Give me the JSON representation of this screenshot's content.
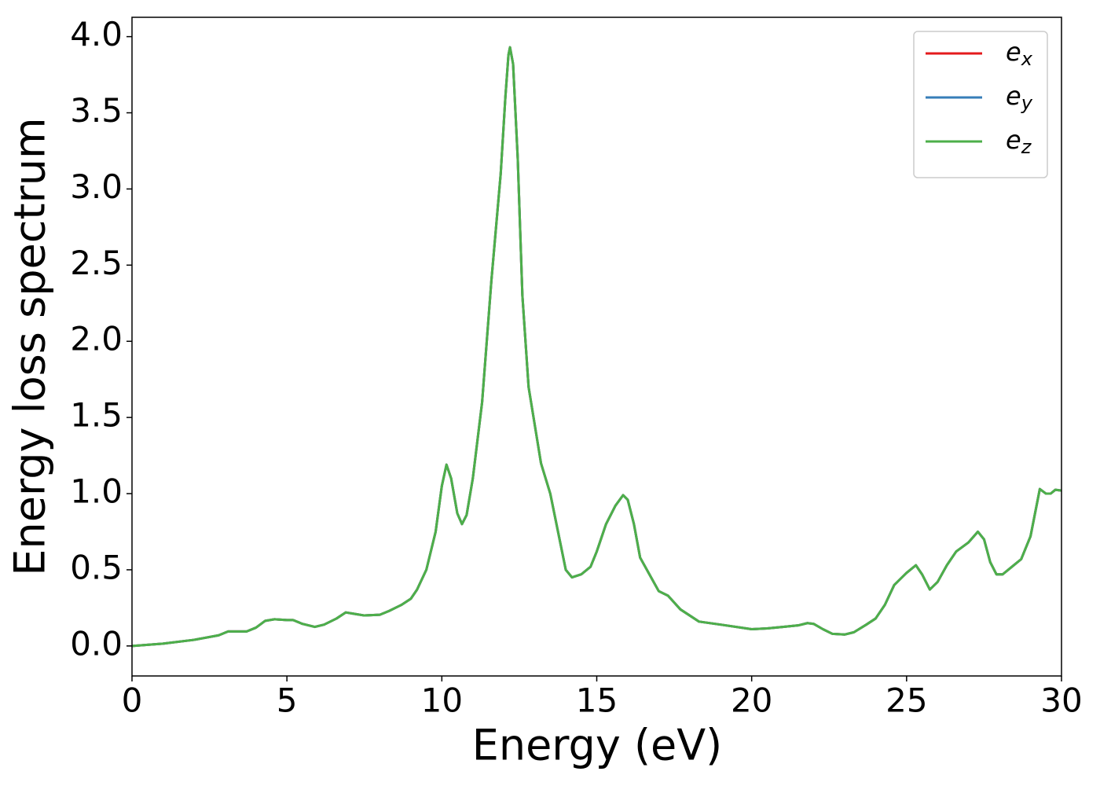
{
  "chart_data": {
    "type": "line",
    "xlabel": "Energy (eV)",
    "ylabel": "Energy loss spectrum",
    "xlim": [
      0,
      30
    ],
    "ylim": [
      -0.197,
      4.127
    ],
    "xticks": [
      0,
      5,
      10,
      15,
      20,
      25,
      30
    ],
    "yticks": [
      {
        "value": 0,
        "label": "0.0"
      },
      {
        "value": 0.5,
        "label": "0.5"
      },
      {
        "value": 1,
        "label": "1.0"
      },
      {
        "value": 1.5,
        "label": "1.5"
      },
      {
        "value": 2,
        "label": "2.0"
      },
      {
        "value": 2.5,
        "label": "2.5"
      },
      {
        "value": 3,
        "label": "3.0"
      },
      {
        "value": 3.5,
        "label": "3.5"
      },
      {
        "value": 4,
        "label": "4.0"
      }
    ],
    "legend": "upper right",
    "grid": false,
    "x": [
      0,
      1,
      2,
      2.8,
      3.1,
      3.7,
      4.0,
      4.3,
      4.6,
      5.0,
      5.2,
      5.5,
      5.9,
      6.2,
      6.6,
      6.9,
      7.2,
      7.5,
      8.0,
      8.3,
      8.7,
      9.0,
      9.2,
      9.5,
      9.8,
      10.0,
      10.15,
      10.3,
      10.5,
      10.65,
      10.8,
      11.0,
      11.3,
      11.6,
      11.9,
      12.05,
      12.15,
      12.2,
      12.3,
      12.45,
      12.6,
      12.8,
      13.0,
      13.2,
      13.5,
      13.8,
      14.0,
      14.2,
      14.5,
      14.8,
      15.0,
      15.3,
      15.6,
      15.85,
      16.0,
      16.2,
      16.4,
      16.7,
      17.0,
      17.3,
      17.7,
      18.0,
      18.3,
      19.0,
      20.0,
      20.5,
      21.0,
      21.5,
      21.8,
      22.0,
      22.3,
      22.6,
      23.0,
      23.3,
      23.7,
      24.0,
      24.3,
      24.6,
      25.0,
      25.3,
      25.5,
      25.75,
      26.0,
      26.3,
      26.6,
      27.0,
      27.3,
      27.5,
      27.7,
      27.9,
      28.1,
      28.4,
      28.7,
      29.0,
      29.3,
      29.5,
      29.65,
      29.8,
      30.0
    ],
    "series": [
      {
        "name": "ex",
        "color": "#e41a1c",
        "values": [
          0,
          0.015,
          0.04,
          0.07,
          0.095,
          0.095,
          0.12,
          0.165,
          0.175,
          0.17,
          0.17,
          0.145,
          0.125,
          0.14,
          0.18,
          0.22,
          0.21,
          0.2,
          0.205,
          0.23,
          0.27,
          0.31,
          0.37,
          0.5,
          0.75,
          1.05,
          1.19,
          1.1,
          0.87,
          0.8,
          0.86,
          1.1,
          1.6,
          2.4,
          3.1,
          3.6,
          3.88,
          3.93,
          3.82,
          3.2,
          2.3,
          1.7,
          1.45,
          1.2,
          1.0,
          0.7,
          0.5,
          0.45,
          0.47,
          0.52,
          0.62,
          0.8,
          0.92,
          0.99,
          0.96,
          0.8,
          0.58,
          0.47,
          0.36,
          0.33,
          0.24,
          0.2,
          0.16,
          0.14,
          0.11,
          0.115,
          0.125,
          0.135,
          0.15,
          0.145,
          0.11,
          0.08,
          0.075,
          0.09,
          0.14,
          0.18,
          0.27,
          0.4,
          0.48,
          0.53,
          0.47,
          0.37,
          0.42,
          0.53,
          0.62,
          0.68,
          0.75,
          0.7,
          0.55,
          0.47,
          0.47,
          0.52,
          0.57,
          0.72,
          1.03,
          1.0,
          1.0,
          1.025,
          1.02
        ]
      },
      {
        "name": "ey",
        "color": "#377eb8",
        "values": [
          0,
          0.015,
          0.04,
          0.07,
          0.095,
          0.095,
          0.12,
          0.165,
          0.175,
          0.17,
          0.17,
          0.145,
          0.125,
          0.14,
          0.18,
          0.22,
          0.21,
          0.2,
          0.205,
          0.23,
          0.27,
          0.31,
          0.37,
          0.5,
          0.75,
          1.05,
          1.19,
          1.1,
          0.87,
          0.8,
          0.86,
          1.1,
          1.6,
          2.4,
          3.1,
          3.6,
          3.88,
          3.93,
          3.82,
          3.2,
          2.3,
          1.7,
          1.45,
          1.2,
          1.0,
          0.7,
          0.5,
          0.45,
          0.47,
          0.52,
          0.62,
          0.8,
          0.92,
          0.99,
          0.96,
          0.8,
          0.58,
          0.47,
          0.36,
          0.33,
          0.24,
          0.2,
          0.16,
          0.14,
          0.11,
          0.115,
          0.125,
          0.135,
          0.15,
          0.145,
          0.11,
          0.08,
          0.075,
          0.09,
          0.14,
          0.18,
          0.27,
          0.4,
          0.48,
          0.53,
          0.47,
          0.37,
          0.42,
          0.53,
          0.62,
          0.68,
          0.75,
          0.7,
          0.55,
          0.47,
          0.47,
          0.52,
          0.57,
          0.72,
          1.03,
          1.0,
          1.0,
          1.025,
          1.02
        ]
      },
      {
        "name": "ez",
        "color": "#4daf4a",
        "values": [
          0,
          0.015,
          0.04,
          0.07,
          0.095,
          0.095,
          0.12,
          0.165,
          0.175,
          0.17,
          0.17,
          0.145,
          0.125,
          0.14,
          0.18,
          0.22,
          0.21,
          0.2,
          0.205,
          0.23,
          0.27,
          0.31,
          0.37,
          0.5,
          0.75,
          1.05,
          1.19,
          1.1,
          0.87,
          0.8,
          0.86,
          1.1,
          1.6,
          2.4,
          3.1,
          3.6,
          3.88,
          3.93,
          3.82,
          3.2,
          2.3,
          1.7,
          1.45,
          1.2,
          1.0,
          0.7,
          0.5,
          0.45,
          0.47,
          0.52,
          0.62,
          0.8,
          0.92,
          0.99,
          0.96,
          0.8,
          0.58,
          0.47,
          0.36,
          0.33,
          0.24,
          0.2,
          0.16,
          0.14,
          0.11,
          0.115,
          0.125,
          0.135,
          0.15,
          0.145,
          0.11,
          0.08,
          0.075,
          0.09,
          0.14,
          0.18,
          0.27,
          0.4,
          0.48,
          0.53,
          0.47,
          0.37,
          0.42,
          0.53,
          0.62,
          0.68,
          0.75,
          0.7,
          0.55,
          0.47,
          0.47,
          0.52,
          0.57,
          0.72,
          1.03,
          1.0,
          1.0,
          1.025,
          1.02
        ]
      }
    ]
  }
}
